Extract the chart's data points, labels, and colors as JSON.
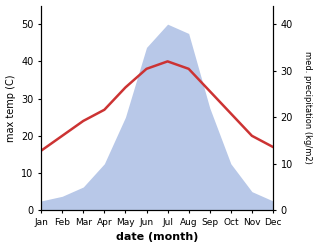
{
  "months": [
    "Jan",
    "Feb",
    "Mar",
    "Apr",
    "May",
    "Jun",
    "Jul",
    "Aug",
    "Sep",
    "Oct",
    "Nov",
    "Dec"
  ],
  "temperature": [
    16,
    20,
    24,
    27,
    33,
    38,
    40,
    38,
    32,
    26,
    20,
    17
  ],
  "precipitation": [
    2,
    3,
    5,
    10,
    20,
    35,
    40,
    38,
    22,
    10,
    4,
    2
  ],
  "temp_ylim": [
    0,
    55
  ],
  "precip_ylim": [
    0,
    44
  ],
  "temp_color": "#cc3333",
  "precip_color": "#b8c8e8",
  "xlabel": "date (month)",
  "ylabel_left": "max temp (C)",
  "ylabel_right": "med. precipitation (kg/m2)",
  "left_yticks": [
    0,
    10,
    20,
    30,
    40,
    50
  ],
  "right_yticks": [
    0,
    10,
    20,
    30,
    40
  ],
  "background_color": "#ffffff"
}
